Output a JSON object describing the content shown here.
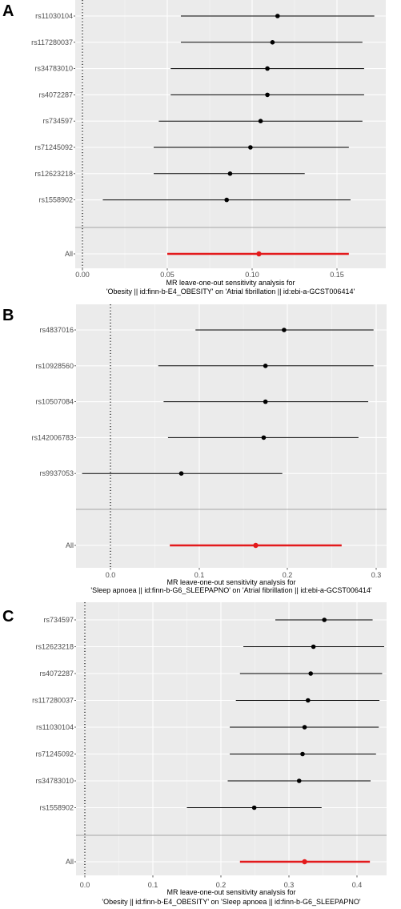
{
  "chart_data": [
    {
      "type": "forest",
      "panel_label": "A",
      "title": "",
      "xlabel_line1": "MR leave-one-out sensitivity analysis for",
      "xlabel_line2": "'Obesity || id:finn-b-E4_OBESITY' on 'Atrial fibrillation || id:ebi-a-GCST006414'",
      "x_ticks": [
        "0.00",
        "0.05",
        "0.10",
        "0.15"
      ],
      "x_tick_values": [
        0.0,
        0.05,
        0.1,
        0.15
      ],
      "xlim": [
        -0.007,
        0.186
      ],
      "grid": true,
      "reference_line_x": 0,
      "snps": [
        {
          "label": "rs11030104",
          "estimate": 0.115,
          "lower": 0.058,
          "upper": 0.172
        },
        {
          "label": "rs117280037",
          "estimate": 0.112,
          "lower": 0.058,
          "upper": 0.165
        },
        {
          "label": "rs34783010",
          "estimate": 0.109,
          "lower": 0.052,
          "upper": 0.166
        },
        {
          "label": "rs4072287",
          "estimate": 0.109,
          "lower": 0.052,
          "upper": 0.166
        },
        {
          "label": "rs734597",
          "estimate": 0.105,
          "lower": 0.045,
          "upper": 0.165
        },
        {
          "label": "rs71245092",
          "estimate": 0.099,
          "lower": 0.042,
          "upper": 0.157
        },
        {
          "label": "rs12623218",
          "estimate": 0.087,
          "lower": 0.042,
          "upper": 0.131
        },
        {
          "label": "rs1558902",
          "estimate": 0.085,
          "lower": 0.012,
          "upper": 0.158
        }
      ],
      "overall": {
        "label": "All",
        "estimate": 0.104,
        "lower": 0.05,
        "upper": 0.157
      },
      "colors": {
        "snp": "#000000",
        "overall": "#e31a1c"
      }
    },
    {
      "type": "forest",
      "panel_label": "B",
      "title": "",
      "xlabel_line1": "MR leave-one-out sensitivity analysis for",
      "xlabel_line2": "'Sleep apnoea || id:finn-b-G6_SLEEPAPNO' on 'Atrial fibrillation || id:ebi-a-GCST006414'",
      "x_ticks": [
        "0.0",
        "0.1",
        "0.2",
        "0.3"
      ],
      "x_tick_values": [
        0.0,
        0.1,
        0.2,
        0.3
      ],
      "xlim": [
        -0.045,
        0.315
      ],
      "grid": true,
      "reference_line_x": 0,
      "snps": [
        {
          "label": "rs4837016",
          "estimate": 0.196,
          "lower": 0.096,
          "upper": 0.297
        },
        {
          "label": "rs10928560",
          "estimate": 0.175,
          "lower": 0.054,
          "upper": 0.297
        },
        {
          "label": "rs10507084",
          "estimate": 0.175,
          "lower": 0.06,
          "upper": 0.291
        },
        {
          "label": "rs142006783",
          "estimate": 0.173,
          "lower": 0.065,
          "upper": 0.28
        },
        {
          "label": "rs9937053",
          "estimate": 0.08,
          "lower": -0.032,
          "upper": 0.194
        }
      ],
      "overall": {
        "label": "All",
        "estimate": 0.164,
        "lower": 0.067,
        "upper": 0.261
      },
      "colors": {
        "snp": "#000000",
        "overall": "#e31a1c"
      }
    },
    {
      "type": "forest",
      "panel_label": "C",
      "title": "",
      "xlabel_line1": "MR leave-one-out sensitivity analysis for",
      "xlabel_line2": "'Obesity || id:finn-b-E4_OBESITY' on 'Sleep apnoea || id:finn-b-G6_SLEEPAPNO'",
      "x_ticks": [
        "0.0",
        "0.1",
        "0.2",
        "0.3",
        "0.4"
      ],
      "x_tick_values": [
        0.0,
        0.1,
        0.2,
        0.3,
        0.4
      ],
      "xlim": [
        -0.035,
        0.45
      ],
      "grid": true,
      "reference_line_x": 0,
      "snps": [
        {
          "label": "rs734597",
          "estimate": 0.352,
          "lower": 0.28,
          "upper": 0.423
        },
        {
          "label": "rs12623218",
          "estimate": 0.336,
          "lower": 0.233,
          "upper": 0.44
        },
        {
          "label": "rs4072287",
          "estimate": 0.332,
          "lower": 0.228,
          "upper": 0.437
        },
        {
          "label": "rs117280037",
          "estimate": 0.328,
          "lower": 0.222,
          "upper": 0.433
        },
        {
          "label": "rs11030104",
          "estimate": 0.323,
          "lower": 0.213,
          "upper": 0.432
        },
        {
          "label": "rs71245092",
          "estimate": 0.32,
          "lower": 0.213,
          "upper": 0.428
        },
        {
          "label": "rs34783010",
          "estimate": 0.315,
          "lower": 0.21,
          "upper": 0.42
        },
        {
          "label": "rs1558902",
          "estimate": 0.249,
          "lower": 0.15,
          "upper": 0.348
        }
      ],
      "overall": {
        "label": "All",
        "estimate": 0.323,
        "lower": 0.228,
        "upper": 0.419
      },
      "colors": {
        "snp": "#000000",
        "overall": "#e31a1c"
      }
    }
  ]
}
